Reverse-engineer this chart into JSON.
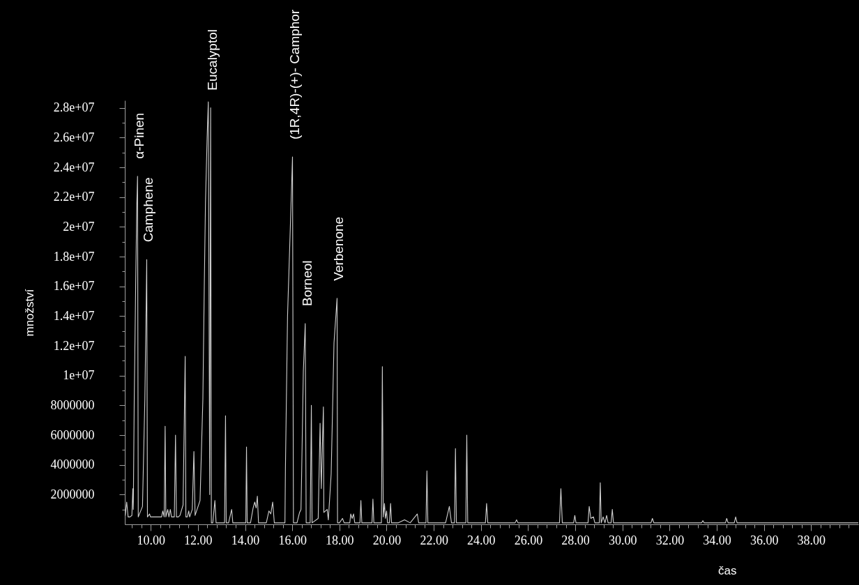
{
  "chart_data": {
    "type": "line",
    "xlabel": "čas",
    "ylabel": "množství",
    "xlim": [
      8.9,
      40.0
    ],
    "ylim": [
      0,
      28500000
    ],
    "xticks": [
      {
        "value": 9.2,
        "label": null
      },
      {
        "value": 9.6,
        "label": null
      },
      {
        "value": 10,
        "label": "10.00"
      },
      {
        "value": 10.4,
        "label": null
      },
      {
        "value": 10.8,
        "label": null
      },
      {
        "value": 11.2,
        "label": null
      },
      {
        "value": 11.6,
        "label": null
      },
      {
        "value": 12,
        "label": "12.00"
      },
      {
        "value": 12.4,
        "label": null
      },
      {
        "value": 12.8,
        "label": null
      },
      {
        "value": 13.2,
        "label": null
      },
      {
        "value": 13.6,
        "label": null
      },
      {
        "value": 14,
        "label": "14.00"
      },
      {
        "value": 14.4,
        "label": null
      },
      {
        "value": 14.8,
        "label": null
      },
      {
        "value": 15.2,
        "label": null
      },
      {
        "value": 15.6,
        "label": null
      },
      {
        "value": 16,
        "label": "16.00"
      },
      {
        "value": 16.4,
        "label": null
      },
      {
        "value": 16.8,
        "label": null
      },
      {
        "value": 17.2,
        "label": null
      },
      {
        "value": 17.6,
        "label": null
      },
      {
        "value": 18,
        "label": "18.00"
      },
      {
        "value": 18.4,
        "label": null
      },
      {
        "value": 18.8,
        "label": null
      },
      {
        "value": 19.2,
        "label": null
      },
      {
        "value": 19.6,
        "label": null
      },
      {
        "value": 20,
        "label": "20.00"
      },
      {
        "value": 20.4,
        "label": null
      },
      {
        "value": 20.8,
        "label": null
      },
      {
        "value": 21.2,
        "label": null
      },
      {
        "value": 21.6,
        "label": null
      },
      {
        "value": 22,
        "label": "22.00"
      },
      {
        "value": 22.4,
        "label": null
      },
      {
        "value": 22.8,
        "label": null
      },
      {
        "value": 23.2,
        "label": null
      },
      {
        "value": 23.6,
        "label": null
      },
      {
        "value": 24,
        "label": "24.00"
      },
      {
        "value": 24.4,
        "label": null
      },
      {
        "value": 24.8,
        "label": null
      },
      {
        "value": 25.2,
        "label": null
      },
      {
        "value": 25.6,
        "label": null
      },
      {
        "value": 26,
        "label": "26.00"
      },
      {
        "value": 26.4,
        "label": null
      },
      {
        "value": 26.8,
        "label": null
      },
      {
        "value": 27.2,
        "label": null
      },
      {
        "value": 27.6,
        "label": null
      },
      {
        "value": 28,
        "label": "28.00"
      },
      {
        "value": 28.4,
        "label": null
      },
      {
        "value": 28.8,
        "label": null
      },
      {
        "value": 29.2,
        "label": null
      },
      {
        "value": 29.6,
        "label": null
      },
      {
        "value": 30,
        "label": "30.00"
      },
      {
        "value": 30.4,
        "label": null
      },
      {
        "value": 30.8,
        "label": null
      },
      {
        "value": 31.2,
        "label": null
      },
      {
        "value": 31.6,
        "label": null
      },
      {
        "value": 32,
        "label": "32.00"
      },
      {
        "value": 32.4,
        "label": null
      },
      {
        "value": 32.8,
        "label": null
      },
      {
        "value": 33.2,
        "label": null
      },
      {
        "value": 33.6,
        "label": null
      },
      {
        "value": 34,
        "label": "34.00"
      },
      {
        "value": 34.4,
        "label": null
      },
      {
        "value": 34.8,
        "label": null
      },
      {
        "value": 35.2,
        "label": null
      },
      {
        "value": 35.6,
        "label": null
      },
      {
        "value": 36,
        "label": "36.00"
      },
      {
        "value": 36.4,
        "label": null
      },
      {
        "value": 36.8,
        "label": null
      },
      {
        "value": 37.2,
        "label": null
      },
      {
        "value": 37.6,
        "label": null
      },
      {
        "value": 38,
        "label": "38.00"
      },
      {
        "value": 38.4,
        "label": null
      },
      {
        "value": 38.8,
        "label": null
      },
      {
        "value": 39.2,
        "label": null
      },
      {
        "value": 39.6,
        "label": null
      }
    ],
    "yticks": [
      {
        "value": 1000000,
        "label": null
      },
      2000000,
      {
        "value": 3000000,
        "label": null
      },
      4000000,
      {
        "value": 5000000,
        "label": null
      },
      6000000,
      {
        "value": 7000000,
        "label": null
      },
      8000000,
      {
        "value": 9000000,
        "label": null
      },
      {
        "value": 10000000,
        "label": "1e+07"
      },
      {
        "value": 11000000,
        "label": null
      },
      {
        "value": 12000000,
        "label": "1.2e+07"
      },
      {
        "value": 13000000,
        "label": null
      },
      {
        "value": 14000000,
        "label": "1.4e+07"
      },
      {
        "value": 15000000,
        "label": null
      },
      {
        "value": 16000000,
        "label": "1.6e+07"
      },
      {
        "value": 17000000,
        "label": null
      },
      {
        "value": 18000000,
        "label": "1.8e+07"
      },
      {
        "value": 19000000,
        "label": null
      },
      {
        "value": 20000000,
        "label": "2e+07"
      },
      {
        "value": 21000000,
        "label": null
      },
      {
        "value": 22000000,
        "label": "2.2e+07"
      },
      {
        "value": 23000000,
        "label": null
      },
      {
        "value": 24000000,
        "label": "2.4e+07"
      },
      {
        "value": 25000000,
        "label": null
      },
      {
        "value": 26000000,
        "label": "2.6e+07"
      },
      {
        "value": 27000000,
        "label": null
      },
      {
        "value": 28000000,
        "label": "2.8e+07"
      }
    ],
    "x": [
      8.92,
      8.98,
      9.04,
      9.12,
      9.2,
      9.24,
      9.26,
      9.3,
      9.36,
      9.41,
      9.44,
      9.47,
      9.65,
      9.75,
      9.8,
      9.83,
      9.86,
      9.95,
      9.99,
      10.15,
      10.46,
      10.51,
      10.57,
      10.61,
      10.64,
      10.72,
      10.77,
      10.83,
      10.88,
      11.0,
      11.05,
      11.09,
      11.17,
      11.24,
      11.37,
      11.46,
      11.49,
      11.55,
      11.61,
      11.65,
      11.76,
      11.83,
      11.88,
      12.09,
      12.21,
      12.27,
      12.32,
      12.39,
      12.44,
      12.5,
      12.54,
      12.57,
      12.63,
      12.72,
      12.77,
      13.13,
      13.17,
      13.2,
      13.3,
      13.43,
      13.48,
      13.77,
      14.03,
      14.06,
      14.09,
      14.23,
      14.34,
      14.41,
      14.47,
      14.52,
      14.57,
      14.9,
      15.01,
      15.09,
      15.17,
      15.24,
      15.69,
      15.71,
      15.8,
      15.93,
      16.01,
      16.05,
      16.2,
      16.31,
      16.37,
      16.4,
      16.47,
      16.55,
      16.59,
      16.76,
      16.81,
      16.84,
      17.1,
      17.18,
      17.23,
      17.32,
      17.34,
      17.48,
      17.53,
      17.65,
      17.77,
      17.9,
      17.92,
      18.0,
      18.13,
      18.2,
      18.44,
      18.48,
      18.54,
      18.6,
      18.65,
      18.87,
      18.91,
      18.95,
      19.38,
      19.42,
      19.46,
      19.78,
      19.82,
      19.86,
      19.91,
      19.95,
      20.0,
      20.04,
      20.12,
      20.17,
      20.21,
      20.5,
      20.76,
      21.0,
      21.3,
      21.36,
      21.67,
      21.71,
      21.75,
      22.5,
      22.66,
      22.75,
      22.88,
      22.92,
      22.96,
      23.36,
      23.4,
      23.44,
      24.19,
      24.24,
      24.29,
      25.45,
      25.51,
      25.57,
      26.08,
      27.33,
      27.39,
      27.45,
      27.93,
      27.98,
      28.03,
      28.54,
      28.59,
      28.66,
      28.77,
      28.83,
      29.02,
      29.06,
      29.1,
      29.18,
      29.26,
      29.33,
      29.39,
      29.52,
      29.57,
      29.62,
      31.21,
      31.27,
      31.33,
      33.36,
      33.41,
      33.46,
      34.37,
      34.42,
      34.48,
      34.74,
      34.8,
      34.86,
      35.56,
      36.32,
      37.15,
      39.27,
      40.0
    ],
    "series": [
      {
        "color": "#d0d0d0",
        "values": [
          600000,
          1500000,
          500000,
          500000,
          600000,
          2400000,
          1000000,
          8400000,
          16000000,
          21600000,
          23400000,
          500000,
          1200000,
          8400000,
          14100000,
          17800000,
          500000,
          700000,
          500000,
          500000,
          500000,
          900000,
          500000,
          6600000,
          500000,
          1000000,
          500000,
          1000000,
          500000,
          500000,
          6000000,
          500000,
          500000,
          600000,
          1300000,
          11300000,
          500000,
          500000,
          900000,
          500000,
          1000000,
          4900000,
          600000,
          1600000,
          8400000,
          16000000,
          21600000,
          26000000,
          28400000,
          2000000,
          28000000,
          100000,
          100000,
          1600000,
          100000,
          100000,
          7300000,
          100000,
          100000,
          1000000,
          100000,
          100000,
          100000,
          5200000,
          100000,
          100000,
          1100000,
          1500000,
          1100000,
          1900000,
          100000,
          100000,
          900000,
          700000,
          1500000,
          100000,
          100000,
          3700000,
          14000000,
          20600000,
          24700000,
          100000,
          100000,
          800000,
          1000000,
          3600000,
          10300000,
          13500000,
          100000,
          100000,
          8000000,
          100000,
          400000,
          6800000,
          2400000,
          7900000,
          800000,
          1000000,
          300000,
          3400000,
          12200000,
          15200000,
          100000,
          100000,
          400000,
          100000,
          100000,
          700000,
          400000,
          700000,
          100000,
          100000,
          1600000,
          100000,
          100000,
          1700000,
          100000,
          100000,
          10600000,
          500000,
          1400000,
          400000,
          900000,
          100000,
          100000,
          1400000,
          100000,
          100000,
          300000,
          100000,
          700000,
          100000,
          100000,
          3600000,
          100000,
          100000,
          1200000,
          100000,
          100000,
          5100000,
          100000,
          100000,
          6000000,
          100000,
          100000,
          1400000,
          100000,
          100000,
          300000,
          100000,
          100000,
          100000,
          2400000,
          100000,
          100000,
          600000,
          100000,
          100000,
          1200000,
          400000,
          500000,
          100000,
          100000,
          2800000,
          100000,
          500000,
          100000,
          600000,
          100000,
          100000,
          1000000,
          100000,
          100000,
          400000,
          100000,
          100000,
          250000,
          100000,
          100000,
          400000,
          100000,
          100000,
          500000,
          100000,
          100000,
          100000,
          100000,
          100000,
          100000
        ]
      }
    ],
    "annotations": [
      {
        "text": "α-Pinen",
        "x": 9.44,
        "y": 23400000
      },
      {
        "text": "Camphene",
        "x": 9.83,
        "y": 17800000
      },
      {
        "text": "Eucalyptol",
        "x": 12.54,
        "y": 28000000
      },
      {
        "text": "(1R,4R)-(+)- Camphor",
        "x": 16.01,
        "y": 24700000
      },
      {
        "text": "Borneol",
        "x": 16.55,
        "y": 13500000
      },
      {
        "text": "Verbenone",
        "x": 17.9,
        "y": 15200000
      }
    ]
  }
}
